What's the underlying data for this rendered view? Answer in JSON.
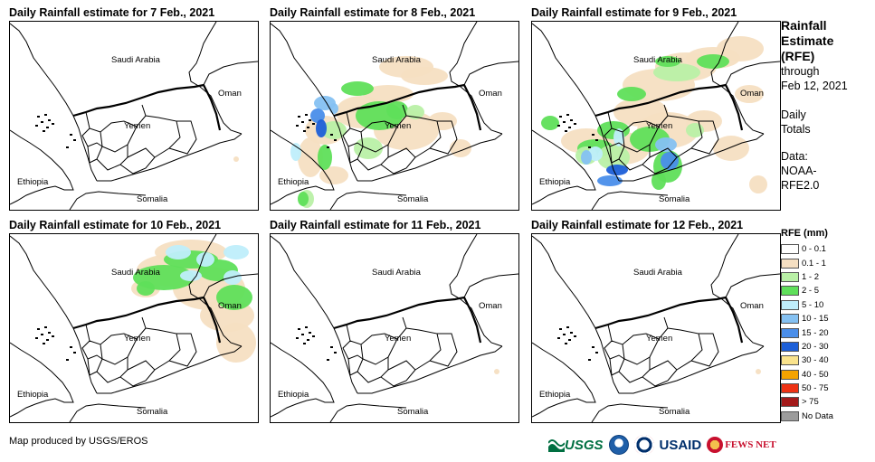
{
  "panels": [
    {
      "title": "Daily Rainfall estimate for 7 Feb., 2021",
      "rain": "none"
    },
    {
      "title": "Daily Rainfall estimate for 8 Feb., 2021",
      "rain": "moderate"
    },
    {
      "title": "Daily Rainfall estimate for 9 Feb., 2021",
      "rain": "heavy"
    },
    {
      "title": "Daily Rainfall estimate for 10 Feb., 2021",
      "rain": "north"
    },
    {
      "title": "Daily Rainfall estimate for 11 Feb., 2021",
      "rain": "none"
    },
    {
      "title": "Daily Rainfall estimate for 12 Feb., 2021",
      "rain": "none"
    }
  ],
  "map_labels": {
    "saudi": "Saudi Arabia",
    "yemen": "Yemen",
    "oman": "Oman",
    "ethiopia": "Ethiopia",
    "somalia": "Somalia"
  },
  "side": {
    "title_line1": "Rainfall",
    "title_line2": "Estimate",
    "title_line3": "(RFE)",
    "through": "through",
    "date": "Feb 12, 2021",
    "daily1": "Daily",
    "daily2": "Totals",
    "data1": "Data:",
    "data2": "NOAA-",
    "data3": "RFE2.0"
  },
  "legend": {
    "title": "RFE (mm)",
    "items": [
      {
        "label": "0 - 0.1",
        "color": "#ffffff"
      },
      {
        "label": "0.1 - 1",
        "color": "#f5dfc2"
      },
      {
        "label": "1 - 2",
        "color": "#b9f0a6"
      },
      {
        "label": "2 - 5",
        "color": "#5fdf5a"
      },
      {
        "label": "5 - 10",
        "color": "#bfeefb"
      },
      {
        "label": "10 - 15",
        "color": "#85c1f2"
      },
      {
        "label": "15 - 20",
        "color": "#4a8eea"
      },
      {
        "label": "20 - 30",
        "color": "#1c5fd8"
      },
      {
        "label": "30 - 40",
        "color": "#fae38c"
      },
      {
        "label": "40 - 50",
        "color": "#f5a300"
      },
      {
        "label": "50 - 75",
        "color": "#ee3214"
      },
      {
        "label": "> 75",
        "color": "#a31a1a"
      },
      {
        "label": "No Data",
        "color": "#9c9c9c"
      }
    ]
  },
  "credit": "Map produced by USGS/EROS",
  "logos": {
    "usgs": "USGS",
    "usaid": "USAID",
    "fews": "FEWS NET"
  }
}
